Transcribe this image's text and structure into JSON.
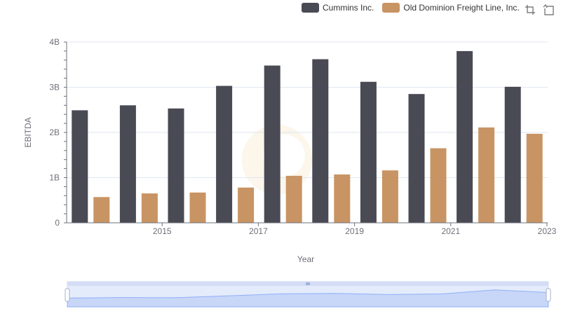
{
  "chart_data": {
    "type": "bar",
    "xlabel": "Year",
    "ylabel": "EBITDA",
    "x": [
      2014,
      2015,
      2016,
      2017,
      2018,
      2019,
      2020,
      2021,
      2022,
      2023
    ],
    "x_tick_labels": [
      "2015",
      "2017",
      "2019",
      "2021",
      "2023"
    ],
    "y_ticks": [
      0,
      1000000000,
      2000000000,
      3000000000,
      4000000000
    ],
    "y_tick_labels": [
      "0",
      "1B",
      "2B",
      "3B",
      "4B"
    ],
    "ylim": [
      0,
      4000000000
    ],
    "grid": true,
    "legend_position": "top-right",
    "series": [
      {
        "name": "Cummins Inc.",
        "color": "#4a4a55",
        "values": [
          2490000000,
          2600000000,
          2530000000,
          3030000000,
          3480000000,
          3620000000,
          3120000000,
          2850000000,
          3800000000,
          3010000000
        ]
      },
      {
        "name": "Old Dominion Freight Line, Inc.",
        "color": "#c89464",
        "values": [
          570000000,
          650000000,
          670000000,
          780000000,
          1040000000,
          1070000000,
          1160000000,
          1650000000,
          2110000000,
          1970000000
        ]
      }
    ]
  },
  "toolbar": {
    "zoom_icon": "zoom-icon",
    "restore_icon": "restore-icon"
  }
}
